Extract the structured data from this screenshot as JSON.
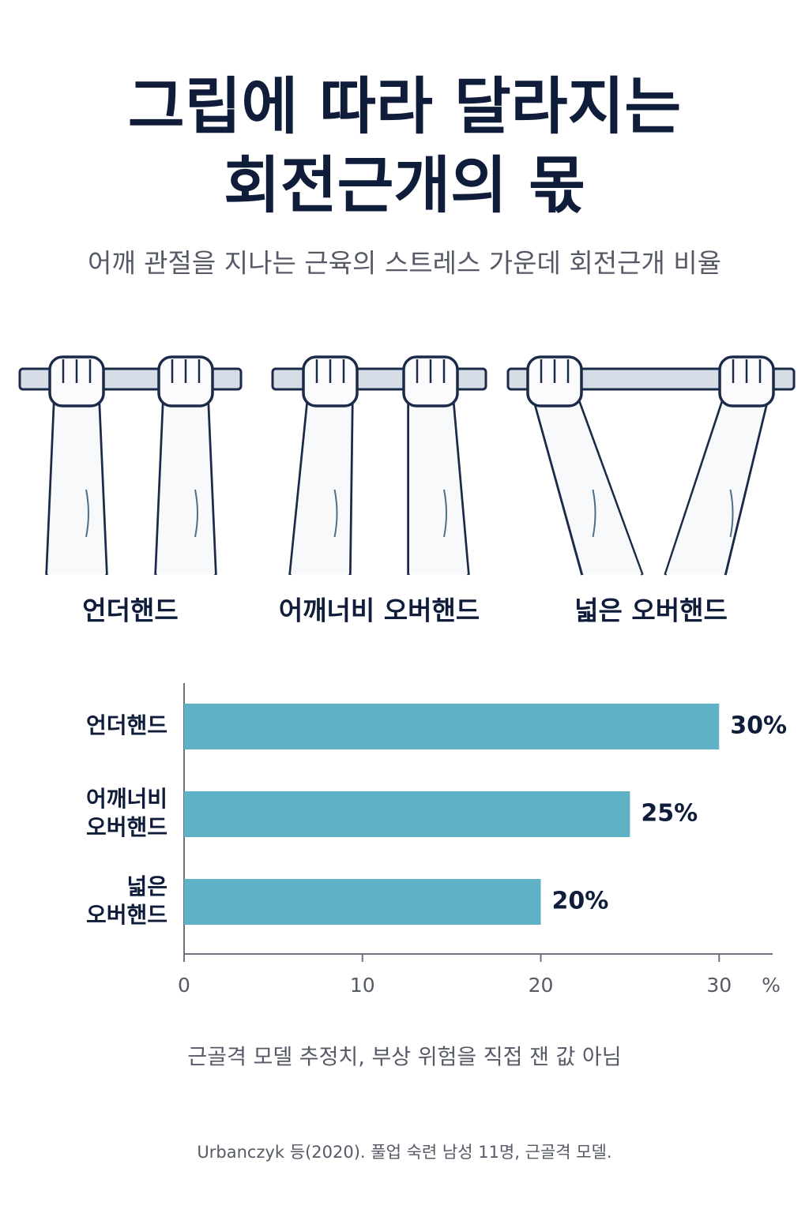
{
  "chart_data": {
    "type": "bar",
    "orientation": "horizontal",
    "title": [
      "그립에 따라 달라지는",
      "회전근개의 몫"
    ],
    "subtitle": "어깨 관절을 지나는 근육의 스트레스 가운데 회전근개 비율",
    "categories": [
      "언더핸드",
      "어깨너비 오버핸드",
      "넓은 오버핸드"
    ],
    "values": [
      30,
      25,
      20
    ],
    "value_labels": [
      "30%",
      "25%",
      "20%"
    ],
    "color": "#5fb2c6",
    "xlim": [
      0,
      33
    ],
    "xticks": [
      0,
      10,
      20,
      30
    ],
    "x_label": "%",
    "note": "근골격 모델 추정치, 부상 위험을 직접 잰 값 아님",
    "source": "Urbanczyk 등(2020). 풀업 숙련 남성 11명, 근골격 모델."
  }
}
